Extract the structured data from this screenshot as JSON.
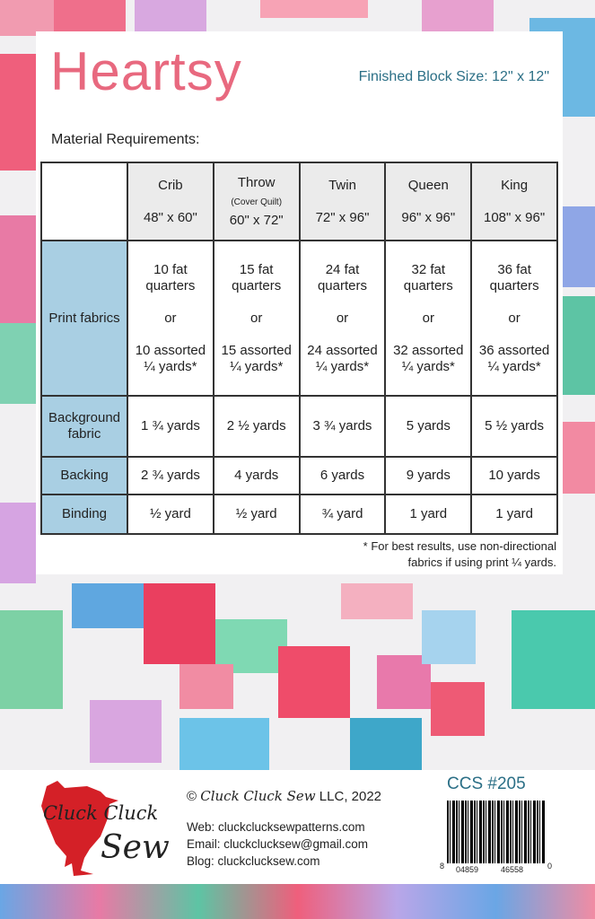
{
  "title": "Heartsy",
  "block_size": "Finished Block Size:  12\" x 12\"",
  "material_heading": "Material Requirements:",
  "table": {
    "headers": [
      {
        "name": "Crib",
        "sub": "",
        "size": "48\" x 60\""
      },
      {
        "name": "Throw",
        "sub": "(Cover Quilt)",
        "size": "60\" x 72\""
      },
      {
        "name": "Twin",
        "sub": "",
        "size": "72\" x 96\""
      },
      {
        "name": "Queen",
        "sub": "",
        "size": "96\" x 96\""
      },
      {
        "name": "King",
        "sub": "",
        "size": "108\" x 96\""
      }
    ],
    "print": {
      "label": "Print fabrics",
      "or": "or",
      "cells": [
        {
          "a": "10 fat quarters",
          "b": "10 assorted ¼ yards*"
        },
        {
          "a": "15 fat quarters",
          "b": "15 assorted ¼ yards*"
        },
        {
          "a": "24 fat quarters",
          "b": "24 assorted ¼ yards*"
        },
        {
          "a": "32 fat quarters",
          "b": "32 assorted ¼ yards*"
        },
        {
          "a": "36 fat quarters",
          "b": "36 assorted ¼ yards*"
        }
      ]
    },
    "background": {
      "label": "Background fabric",
      "cells": [
        "1 ¾ yards",
        "2 ½ yards",
        "3 ¾ yards",
        "5 yards",
        "5 ½ yards"
      ]
    },
    "backing": {
      "label": "Backing",
      "cells": [
        "2 ¾ yards",
        "4 yards",
        "6 yards",
        "9 yards",
        "10 yards"
      ]
    },
    "binding": {
      "label": "Binding",
      "cells": [
        "½ yard",
        "½ yard",
        "¾ yard",
        "1 yard",
        "1 yard"
      ]
    }
  },
  "note_1": "* For best results, use non-directional",
  "note_2": "fabrics if using print ¼ yards.",
  "footer": {
    "copyright_symbol": "©",
    "copyright_brand": "Cluck Cluck Sew",
    "copyright_rest": "LLC, 2022",
    "web": "Web: cluckclucksewpatterns.com",
    "email": "Email: cluckclucksew@gmail.com",
    "blog": "Blog:  cluckclucksew.com",
    "code": "CCS #205",
    "barcode_digits": [
      "8",
      "04859",
      "46558",
      "0"
    ],
    "logo_line1": "Cluck Cluck",
    "logo_line2": "Sew"
  },
  "colors": {
    "title": "#e8697f",
    "teal": "#2b6f86",
    "label_cell": "#a9cfe3",
    "logo_red": "#d42027"
  }
}
